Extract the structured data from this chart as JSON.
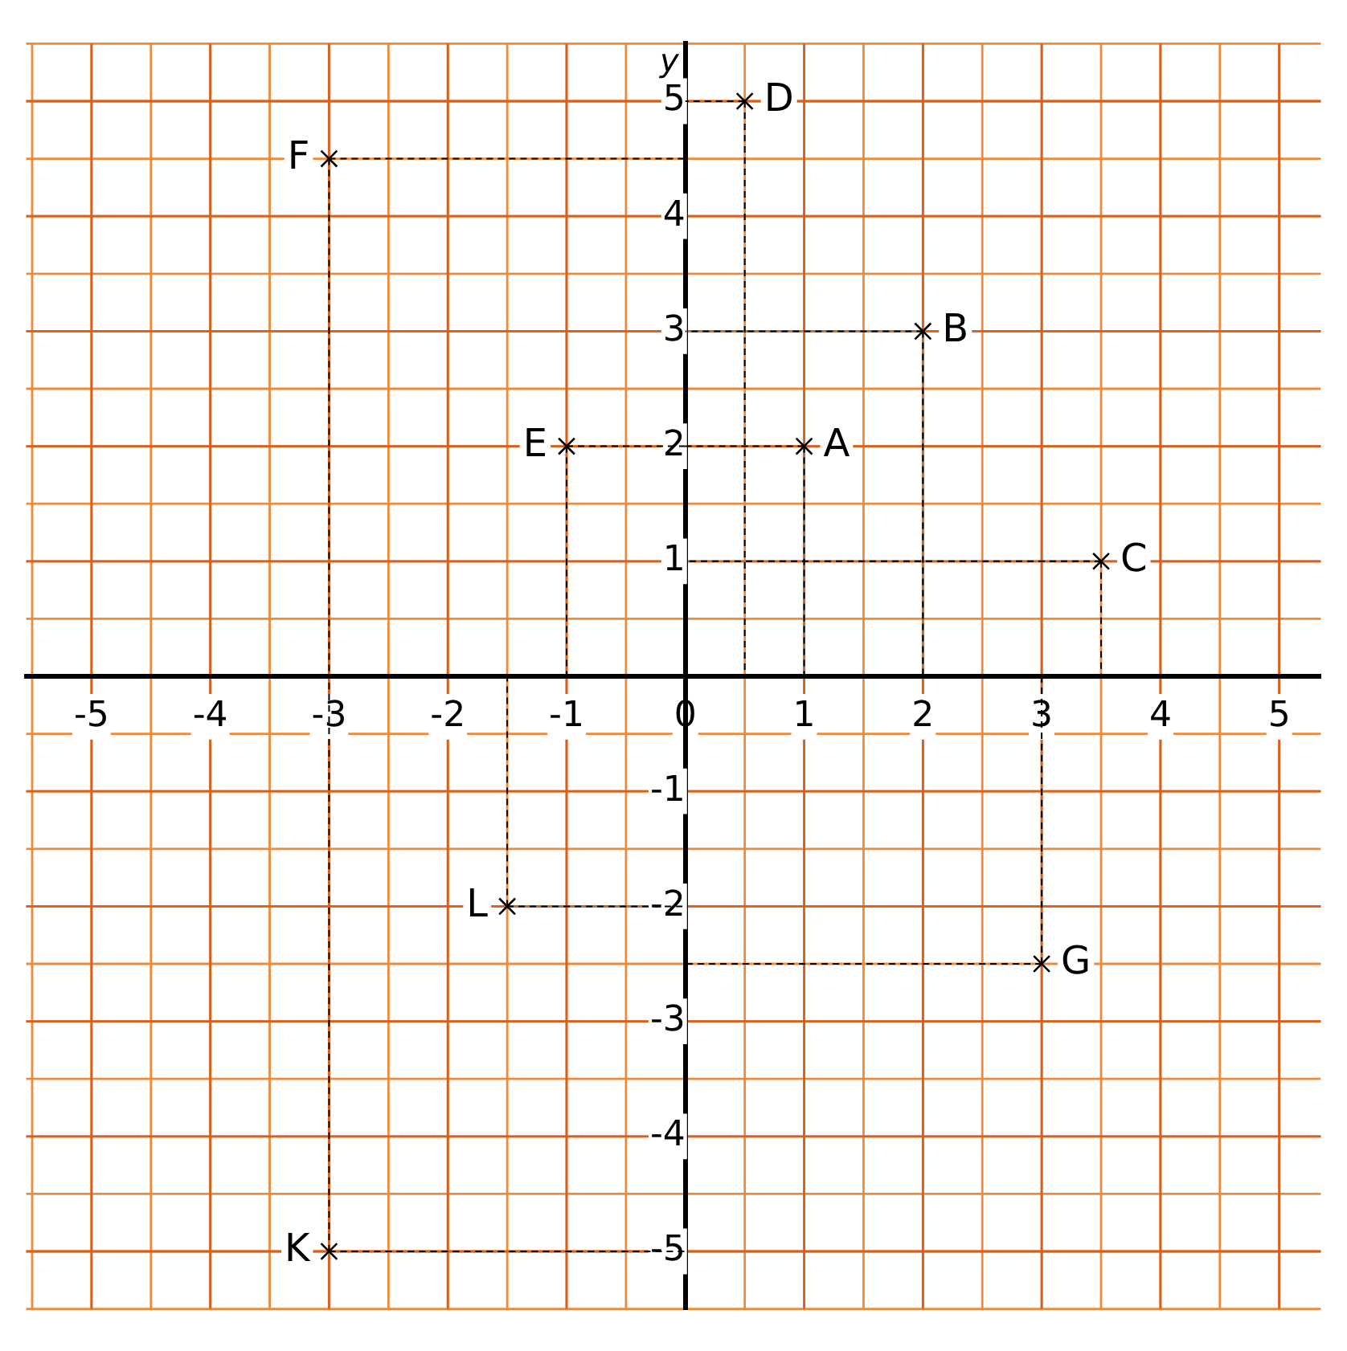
{
  "chart_data": {
    "type": "scatter",
    "ylabel": "y",
    "x": [
      1,
      2,
      3.5,
      0.5,
      -1,
      -3,
      3,
      -1.5,
      -3
    ],
    "series": [
      {
        "color": "#000000",
        "values": [
          2,
          3,
          1,
          5,
          2,
          4.5,
          -2.5,
          -2,
          -5
        ]
      }
    ],
    "annotations": [
      {
        "text": "A",
        "x": 1,
        "y": 2
      },
      {
        "text": "B",
        "x": 2,
        "y": 3
      },
      {
        "text": "C",
        "x": 3.5,
        "y": 1
      },
      {
        "text": "D",
        "x": 0.5,
        "y": 5
      },
      {
        "text": "E",
        "x": -1,
        "y": 2
      },
      {
        "text": "F",
        "x": -3,
        "y": 4.5
      },
      {
        "text": "G",
        "x": 3,
        "y": -2.5
      },
      {
        "text": "L",
        "x": -1.5,
        "y": -2
      },
      {
        "text": "K",
        "x": -3,
        "y": -5
      }
    ],
    "xlim": [
      -5.55,
      5.35
    ],
    "ylim": [
      -5.5,
      5.5
    ],
    "xticks": [
      -5,
      -4,
      -3,
      -2,
      -1,
      0,
      1,
      2,
      3,
      4,
      5
    ],
    "yticks": [
      -5,
      -4,
      -3,
      -2,
      -1,
      1,
      2,
      3,
      4,
      5
    ],
    "grid": true,
    "marker": "cross",
    "legend": false
  }
}
